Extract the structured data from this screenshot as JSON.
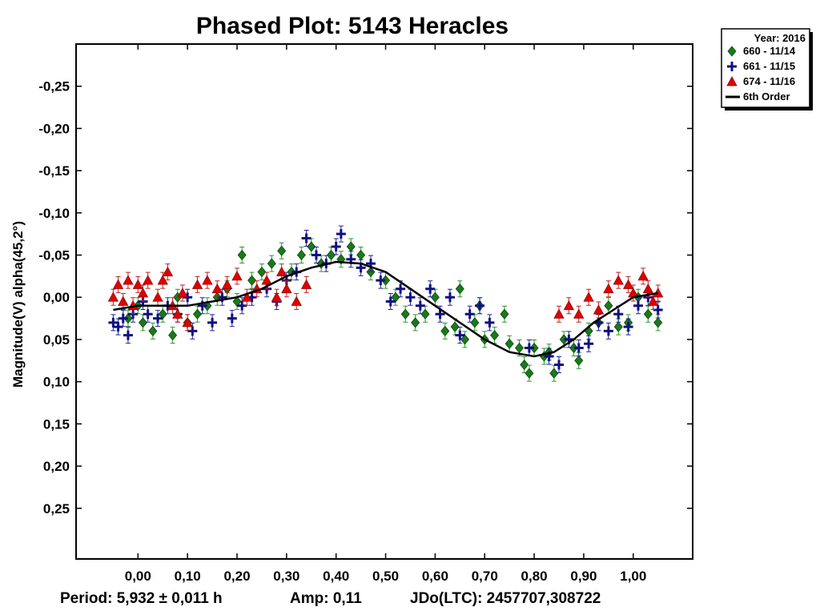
{
  "chart_data": {
    "type": "scatter",
    "title": "Phased Plot: 5143 Heracles",
    "xlabel": "",
    "ylabel": "Magnitude(V) alpha(45,2°)",
    "xlim": [
      -0.125,
      1.12
    ],
    "ylim": [
      -0.3,
      0.31
    ],
    "y_inverted": true,
    "x_ticks": [
      0.0,
      0.1,
      0.2,
      0.3,
      0.4,
      0.5,
      0.6,
      0.7,
      0.8,
      0.9,
      1.0
    ],
    "x_tick_labels": [
      "0,00",
      "0,10",
      "0,20",
      "0,30",
      "0,40",
      "0,50",
      "0,60",
      "0,70",
      "0,80",
      "0,90",
      "1,00"
    ],
    "y_ticks": [
      -0.25,
      -0.2,
      -0.15,
      -0.1,
      -0.05,
      0.0,
      0.05,
      0.1,
      0.15,
      0.2,
      0.25
    ],
    "y_tick_labels": [
      "-0,25",
      "-0,20",
      "-0,15",
      "-0,10",
      "-0,05",
      "0,00",
      "0,05",
      "0,10",
      "0,15",
      "0,20",
      "0,25"
    ],
    "grid": false,
    "legend_position": "outside-top-right",
    "legend_header": "Year: 2016",
    "series": [
      {
        "name": "660 - 11/14",
        "marker": "diamond",
        "color": "#1a7a1a",
        "error_color": "#2a9a2a",
        "points": [
          [
            -0.02,
            0.025
          ],
          [
            0.0,
            0.01
          ],
          [
            0.01,
            0.03
          ],
          [
            0.03,
            0.04
          ],
          [
            0.05,
            0.02
          ],
          [
            0.07,
            0.045
          ],
          [
            0.08,
            0.0
          ],
          [
            0.1,
            0.03
          ],
          [
            0.12,
            0.02
          ],
          [
            0.14,
            0.01
          ],
          [
            0.16,
            0.0
          ],
          [
            0.18,
            -0.01
          ],
          [
            0.2,
            0.005
          ],
          [
            0.21,
            -0.05
          ],
          [
            0.23,
            -0.02
          ],
          [
            0.25,
            -0.03
          ],
          [
            0.27,
            -0.04
          ],
          [
            0.29,
            -0.055
          ],
          [
            0.31,
            -0.03
          ],
          [
            0.33,
            -0.05
          ],
          [
            0.35,
            -0.06
          ],
          [
            0.37,
            -0.04
          ],
          [
            0.39,
            -0.05
          ],
          [
            0.41,
            -0.045
          ],
          [
            0.43,
            -0.06
          ],
          [
            0.45,
            -0.05
          ],
          [
            0.47,
            -0.03
          ],
          [
            0.5,
            -0.02
          ],
          [
            0.52,
            0.0
          ],
          [
            0.54,
            0.02
          ],
          [
            0.56,
            0.03
          ],
          [
            0.58,
            0.02
          ],
          [
            0.6,
            0.0
          ],
          [
            0.62,
            0.04
          ],
          [
            0.64,
            0.035
          ],
          [
            0.65,
            -0.01
          ],
          [
            0.66,
            0.05
          ],
          [
            0.68,
            0.03
          ],
          [
            0.69,
            0.01
          ],
          [
            0.7,
            0.05
          ],
          [
            0.72,
            0.045
          ],
          [
            0.74,
            0.02
          ],
          [
            0.75,
            0.055
          ],
          [
            0.77,
            0.06
          ],
          [
            0.78,
            0.08
          ],
          [
            0.79,
            0.09
          ],
          [
            0.8,
            0.06
          ],
          [
            0.82,
            0.07
          ],
          [
            0.83,
            0.065
          ],
          [
            0.84,
            0.09
          ],
          [
            0.86,
            0.05
          ],
          [
            0.88,
            0.06
          ],
          [
            0.89,
            0.075
          ],
          [
            0.91,
            0.04
          ],
          [
            0.93,
            0.03
          ],
          [
            0.95,
            0.01
          ],
          [
            0.97,
            0.035
          ],
          [
            0.99,
            0.03
          ],
          [
            1.01,
            0.0
          ],
          [
            1.03,
            0.02
          ],
          [
            1.05,
            0.03
          ]
        ]
      },
      {
        "name": "661 - 11/15",
        "marker": "plus",
        "color": "#101080",
        "error_color": "#2020a0",
        "points": [
          [
            -0.05,
            0.03
          ],
          [
            -0.04,
            0.035
          ],
          [
            -0.03,
            0.025
          ],
          [
            -0.02,
            0.045
          ],
          [
            -0.01,
            0.02
          ],
          [
            0.01,
            0.005
          ],
          [
            0.02,
            0.02
          ],
          [
            0.04,
            0.025
          ],
          [
            0.06,
            0.01
          ],
          [
            0.08,
            0.02
          ],
          [
            0.1,
            0.0
          ],
          [
            0.11,
            0.04
          ],
          [
            0.13,
            0.01
          ],
          [
            0.15,
            0.03
          ],
          [
            0.17,
            0.0
          ],
          [
            0.19,
            0.025
          ],
          [
            0.21,
            0.01
          ],
          [
            0.23,
            0.0
          ],
          [
            0.26,
            -0.01
          ],
          [
            0.28,
            0.005
          ],
          [
            0.3,
            -0.02
          ],
          [
            0.32,
            -0.03
          ],
          [
            0.34,
            -0.07
          ],
          [
            0.36,
            -0.05
          ],
          [
            0.38,
            -0.04
          ],
          [
            0.4,
            -0.06
          ],
          [
            0.41,
            -0.075
          ],
          [
            0.43,
            -0.045
          ],
          [
            0.45,
            -0.035
          ],
          [
            0.47,
            -0.04
          ],
          [
            0.49,
            -0.02
          ],
          [
            0.51,
            0.005
          ],
          [
            0.53,
            -0.01
          ],
          [
            0.55,
            0.0
          ],
          [
            0.57,
            0.01
          ],
          [
            0.59,
            -0.01
          ],
          [
            0.61,
            0.02
          ],
          [
            0.63,
            0.0
          ],
          [
            0.65,
            0.045
          ],
          [
            0.67,
            0.02
          ],
          [
            0.69,
            0.01
          ],
          [
            0.71,
            0.03
          ],
          [
            0.79,
            0.06
          ],
          [
            0.83,
            0.07
          ],
          [
            0.85,
            0.08
          ],
          [
            0.87,
            0.05
          ],
          [
            0.89,
            0.06
          ],
          [
            0.91,
            0.055
          ],
          [
            0.93,
            0.03
          ],
          [
            0.95,
            0.04
          ],
          [
            0.97,
            0.02
          ],
          [
            0.99,
            0.035
          ],
          [
            1.01,
            0.01
          ],
          [
            1.03,
            0.0
          ],
          [
            1.05,
            0.015
          ]
        ]
      },
      {
        "name": "674 - 11/16",
        "marker": "triangle",
        "color": "#e00000",
        "error_color": "#c02020",
        "points": [
          [
            -0.05,
            0.0
          ],
          [
            -0.04,
            -0.015
          ],
          [
            -0.03,
            0.005
          ],
          [
            -0.02,
            -0.02
          ],
          [
            -0.01,
            0.01
          ],
          [
            0.0,
            -0.015
          ],
          [
            0.01,
            -0.005
          ],
          [
            0.02,
            -0.02
          ],
          [
            0.04,
            0.0
          ],
          [
            0.05,
            -0.02
          ],
          [
            0.06,
            -0.03
          ],
          [
            0.07,
            0.01
          ],
          [
            0.08,
            0.02
          ],
          [
            0.09,
            -0.005
          ],
          [
            0.1,
            0.03
          ],
          [
            0.12,
            -0.015
          ],
          [
            0.14,
            -0.02
          ],
          [
            0.16,
            -0.01
          ],
          [
            0.18,
            -0.015
          ],
          [
            0.2,
            -0.025
          ],
          [
            0.22,
            0.0
          ],
          [
            0.24,
            -0.01
          ],
          [
            0.26,
            -0.02
          ],
          [
            0.28,
            0.0
          ],
          [
            0.29,
            -0.03
          ],
          [
            0.3,
            -0.01
          ],
          [
            0.32,
            0.005
          ],
          [
            0.34,
            -0.015
          ],
          [
            0.85,
            0.02
          ],
          [
            0.87,
            0.01
          ],
          [
            0.89,
            0.02
          ],
          [
            0.91,
            0.0
          ],
          [
            0.93,
            0.015
          ],
          [
            0.95,
            -0.01
          ],
          [
            0.97,
            -0.02
          ],
          [
            0.99,
            -0.015
          ],
          [
            1.0,
            -0.005
          ],
          [
            1.02,
            -0.025
          ],
          [
            1.03,
            -0.01
          ],
          [
            1.04,
            0.005
          ],
          [
            1.05,
            -0.005
          ]
        ]
      },
      {
        "name": "6th Order",
        "type": "line",
        "color": "#000000",
        "points": [
          [
            -0.05,
            0.015
          ],
          [
            0.0,
            0.01
          ],
          [
            0.05,
            0.01
          ],
          [
            0.1,
            0.01
          ],
          [
            0.15,
            0.005
          ],
          [
            0.2,
            0.0
          ],
          [
            0.25,
            -0.01
          ],
          [
            0.3,
            -0.025
          ],
          [
            0.35,
            -0.035
          ],
          [
            0.4,
            -0.042
          ],
          [
            0.45,
            -0.04
          ],
          [
            0.5,
            -0.03
          ],
          [
            0.55,
            -0.01
          ],
          [
            0.6,
            0.01
          ],
          [
            0.65,
            0.03
          ],
          [
            0.7,
            0.05
          ],
          [
            0.75,
            0.065
          ],
          [
            0.8,
            0.07
          ],
          [
            0.84,
            0.065
          ],
          [
            0.88,
            0.05
          ],
          [
            0.92,
            0.03
          ],
          [
            0.96,
            0.015
          ],
          [
            1.0,
            0.0
          ],
          [
            1.05,
            -0.005
          ]
        ]
      }
    ]
  },
  "footer": {
    "period": "Period: 5,932 ± 0,011 h",
    "amp": "Amp: 0,11",
    "jdo": "JDo(LTC): 2457707,308722"
  }
}
